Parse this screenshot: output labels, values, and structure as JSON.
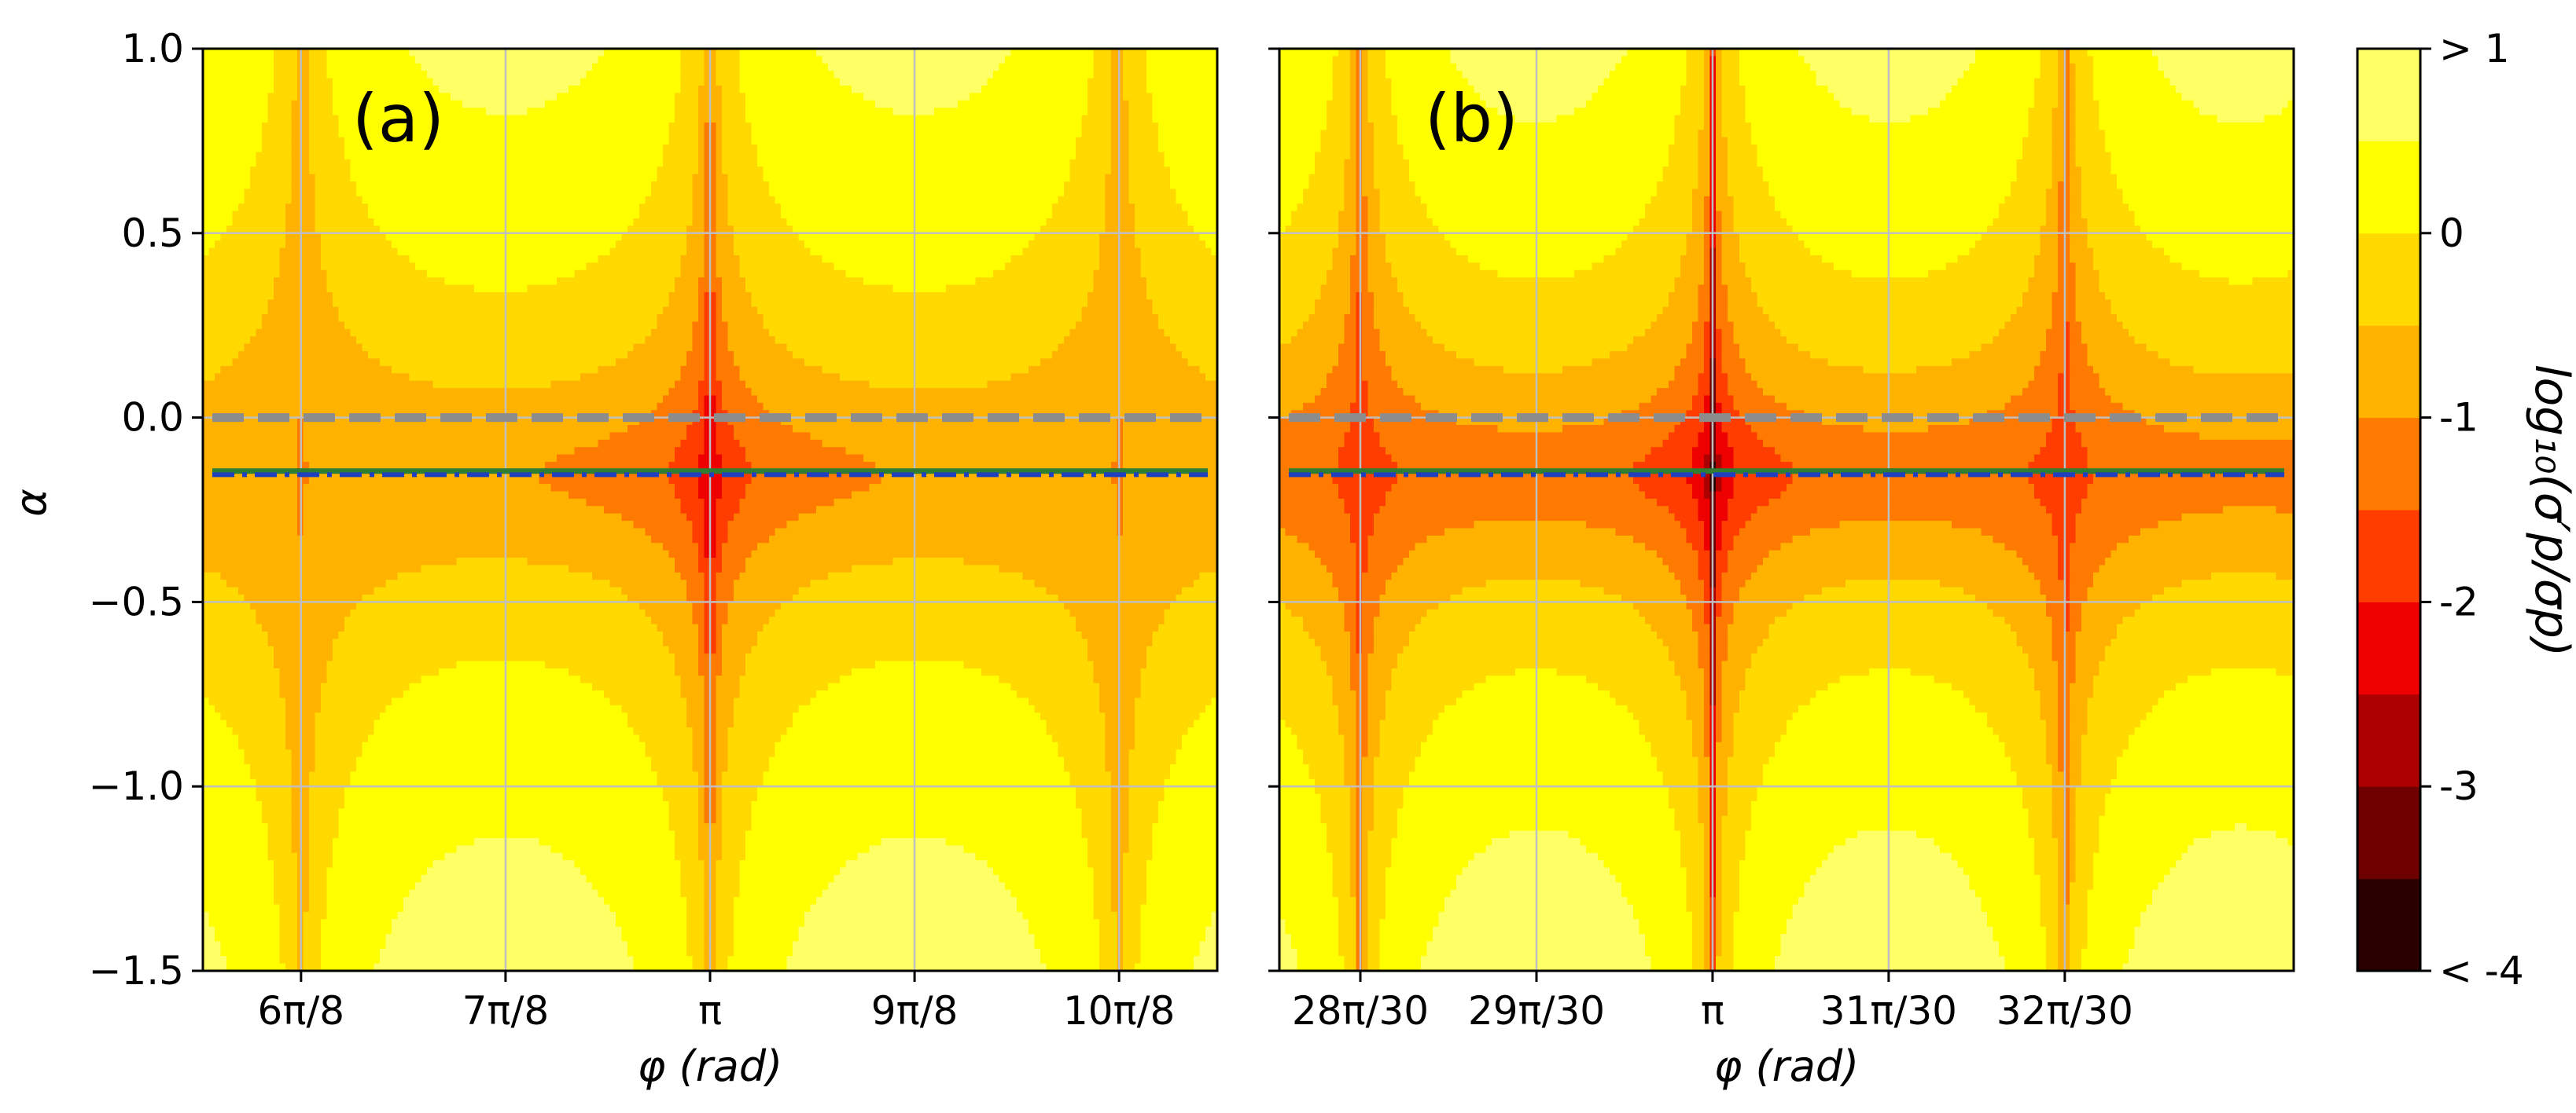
{
  "chart_data": [
    {
      "panel": "(a)",
      "type": "heatmap",
      "title": "",
      "xlabel": "φ (rad)",
      "ylabel": "α",
      "xlim_pi": [
        0.69,
        1.31
      ],
      "ylim": [
        -1.5,
        1.0
      ],
      "grid": true,
      "x_ticks": [
        {
          "value_pi": 0.75,
          "label": "6π/8"
        },
        {
          "value_pi": 0.875,
          "label": "7π/8"
        },
        {
          "value_pi": 1.0,
          "label": "π"
        },
        {
          "value_pi": 1.125,
          "label": "9π/8"
        },
        {
          "value_pi": 1.25,
          "label": "10π/8"
        }
      ],
      "y_ticks": [
        {
          "value": 1.0,
          "label": "1.0"
        },
        {
          "value": 0.5,
          "label": "0.5"
        },
        {
          "value": 0.0,
          "label": "0.0"
        },
        {
          "value": -0.5,
          "label": "−0.5"
        },
        {
          "value": -1.0,
          "label": "−1.0"
        },
        {
          "value": -1.5,
          "label": "−1.5"
        }
      ],
      "singular_phi_pi": [
        0.75,
        1.25
      ],
      "field": {
        "k": 4,
        "scale": 0.9
      },
      "lines": [
        {
          "name": "gray dashed",
          "y": 0.0,
          "color": "#8c8c8c",
          "style": "dashed"
        },
        {
          "name": "green solid",
          "y": -0.145,
          "color": "#2e7d32",
          "style": "solid"
        },
        {
          "name": "blue dash-dot",
          "y": -0.155,
          "color": "#1f3fbf",
          "style": "dashdot"
        }
      ]
    },
    {
      "panel": "(b)",
      "type": "heatmap",
      "title": "",
      "xlabel": "φ (rad)",
      "ylabel": "",
      "xlim_pi": [
        0.918,
        1.11
      ],
      "ylim": [
        -1.5,
        1.0
      ],
      "grid": true,
      "x_ticks": [
        {
          "value_pi": 0.93333,
          "label": "28π/30"
        },
        {
          "value_pi": 0.96667,
          "label": "29π/30"
        },
        {
          "value_pi": 1.0,
          "label": "π"
        },
        {
          "value_pi": 1.03333,
          "label": "31π/30"
        },
        {
          "value_pi": 1.06667,
          "label": "32π/30"
        }
      ],
      "y_ticks": [
        {
          "value": 1.0,
          "label": ""
        },
        {
          "value": 0.5,
          "label": ""
        },
        {
          "value": 0.0,
          "label": ""
        },
        {
          "value": -0.5,
          "label": ""
        },
        {
          "value": -1.0,
          "label": ""
        },
        {
          "value": -1.5,
          "label": ""
        }
      ],
      "singular_phi_pi": [
        0.93333,
        1.06667
      ],
      "field": {
        "k": 15,
        "scale": 1.0
      },
      "lines": [
        {
          "name": "gray dashed",
          "y": 0.0,
          "color": "#8c8c8c",
          "style": "dashed"
        },
        {
          "name": "green solid",
          "y": -0.145,
          "color": "#2e7d32",
          "style": "solid"
        },
        {
          "name": "blue dash-dot",
          "y": -0.155,
          "color": "#1f3fbf",
          "style": "dashdot"
        }
      ]
    }
  ],
  "colorbar": {
    "title": "log₁₀(σ′p/σp)",
    "levels": [
      -4,
      -3.5,
      -3,
      -2.5,
      -2,
      -1.5,
      -1,
      -0.5,
      0,
      0.5,
      1
    ],
    "colors": [
      "#2a0000",
      "#6e0000",
      "#ad0000",
      "#ef0000",
      "#ff3d00",
      "#ff7a00",
      "#ffb300",
      "#ffd900",
      "#ffff00",
      "#ffff66",
      "#ffffcc"
    ],
    "tick_labels": [
      {
        "value": 1,
        "label": "> 1"
      },
      {
        "value": 0,
        "label": "0"
      },
      {
        "value": -1,
        "label": "-1"
      },
      {
        "value": -2,
        "label": "-2"
      },
      {
        "value": -3,
        "label": "-3"
      },
      {
        "value": -4,
        "label": "< -4"
      }
    ]
  }
}
